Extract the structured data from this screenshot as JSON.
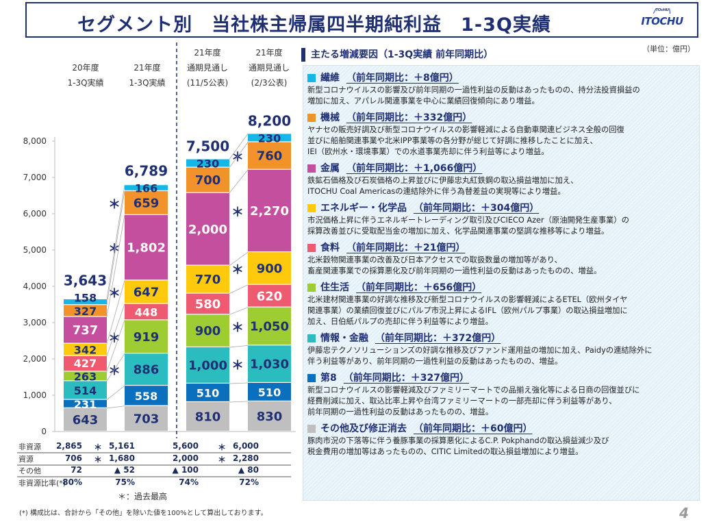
{
  "title": "セグメント別　当社株主帰属四半期純利益　1-3Q実績",
  "logo": "ITOCHU",
  "unit": "（単位：億円）",
  "colors": {
    "その他": "#bfbfbf",
    "第8": "#0a6fbd",
    "情報・金融": "#2bbcbf",
    "住生活": "#9dcc33",
    "食料": "#ee5a70",
    "エネルギー・化学品": "#ffc90e",
    "金属": "#c44f9e",
    "機械": "#f2922a",
    "繊維": "#16b6e6",
    "navy": "#1f2f73"
  },
  "chart_data": {
    "type": "bar",
    "stacked": true,
    "categories": [
      [
        "20年度",
        "1-3Q実績"
      ],
      [
        "21年度",
        "1-3Q実績"
      ],
      [
        "21年度",
        "通期見通し",
        "(11/5公表)"
      ],
      [
        "21年度",
        "通期見通し",
        "(2/3公表)"
      ]
    ],
    "ylim": [
      0,
      8000
    ],
    "yticks": [
      "0",
      "1,000",
      "2,000",
      "3,000",
      "4,000",
      "5,000",
      "6,000",
      "7,000",
      "8,000"
    ],
    "totals": [
      "3,643",
      "6,789",
      "7,500",
      "8,200"
    ],
    "series": [
      {
        "key": "その他",
        "values": [
          643,
          703,
          810,
          830
        ],
        "labels": [
          "643",
          "703",
          "810",
          "830"
        ],
        "stars": [
          false,
          false,
          false,
          false
        ]
      },
      {
        "key": "第8",
        "values": [
          231,
          558,
          510,
          510
        ],
        "labels": [
          "231",
          "558",
          "510",
          "510"
        ],
        "stars": [
          false,
          false,
          false,
          false
        ]
      },
      {
        "key": "情報・金融",
        "values": [
          514,
          886,
          1000,
          1030
        ],
        "labels": [
          "514",
          "886",
          "1,000",
          "1,030"
        ],
        "stars": [
          false,
          true,
          false,
          true
        ]
      },
      {
        "key": "住生活",
        "values": [
          263,
          919,
          900,
          1050
        ],
        "labels": [
          "263",
          "919",
          "900",
          "1,050"
        ],
        "stars": [
          false,
          true,
          false,
          true
        ]
      },
      {
        "key": "食料",
        "values": [
          427,
          448,
          580,
          620
        ],
        "labels": [
          "427",
          "448",
          "580",
          "620"
        ],
        "stars": [
          false,
          false,
          false,
          false
        ]
      },
      {
        "key": "エネルギー・化学品",
        "values": [
          342,
          647,
          770,
          900
        ],
        "labels": [
          "342",
          "647",
          "770",
          "900"
        ],
        "stars": [
          false,
          true,
          false,
          true
        ]
      },
      {
        "key": "金属",
        "values": [
          737,
          1802,
          2000,
          2270
        ],
        "labels": [
          "737",
          "1,802",
          "2,000",
          "2,270"
        ],
        "stars": [
          false,
          true,
          false,
          true
        ]
      },
      {
        "key": "機械",
        "values": [
          327,
          659,
          700,
          760
        ],
        "labels": [
          "327",
          "659",
          "700",
          "760"
        ],
        "stars": [
          false,
          true,
          false,
          true
        ]
      },
      {
        "key": "繊維",
        "values": [
          158,
          166,
          230,
          230
        ],
        "labels": [
          "158",
          "166",
          "230",
          "230"
        ],
        "stars": [
          false,
          false,
          false,
          false
        ]
      }
    ]
  },
  "table": [
    {
      "label": "非資源",
      "values": [
        "2,865",
        "5,161",
        "5,600",
        "6,000"
      ],
      "stars": [
        false,
        true,
        false,
        true
      ]
    },
    {
      "label": "資源",
      "values": [
        "706",
        "1,680",
        "2,000",
        "2,280"
      ],
      "stars": [
        false,
        true,
        false,
        true
      ]
    },
    {
      "label": "その他",
      "values": [
        "72",
        "▲ 52",
        "▲ 100",
        "▲ 80"
      ],
      "stars": [
        false,
        false,
        false,
        false
      ]
    },
    {
      "label": "非資源比率(*)",
      "values": [
        "80%",
        "75%",
        "74%",
        "72%"
      ],
      "stars": [
        false,
        false,
        false,
        false
      ]
    }
  ],
  "star": "＊",
  "star_legend": "＊：過去最高",
  "footnote": "(*) 構成比は、合計から「その他」を除いた値を100%として算出しております。",
  "panel": {
    "title": "主たる増減要因（1-3Q実績 前年同期比）",
    "sections": [
      {
        "color": "#16b6e6",
        "name": "繊維",
        "diff": "（前年同期比：＋8億円）",
        "body": "新型コロナウイルスの影響及び前年同期の一過性利益の反動はあったものの、持分法投資損益の\n増加に加え、アパレル関連事業を中心に業績回復傾向にあり増益。"
      },
      {
        "color": "#f2922a",
        "name": "機械",
        "diff": "（前年同期比：＋332億円）",
        "body": "ヤナセの販売好調及び新型コロナウイルスの影響軽減による自動車関連ビジネス全般の回復\n並びに船舶関連事業や北米IPP事業等の各分野が総じて好調に推移したことに加え、\nIEI（欧州水・環境事業）での水道事業売却に伴う利益等により増益。"
      },
      {
        "color": "#c44f9e",
        "name": "金属",
        "diff": "（前年同期比：＋1,066億円）",
        "body": "鉄鉱石価格及び石炭価格の上昇並びに伊藤忠丸紅鉄鋼の取込損益増加に加え、\nITOCHU Coal Americasの連結除外に伴う為替差益の実現等により増益。"
      },
      {
        "color": "#ffc90e",
        "name": "エネルギー・化学品",
        "diff": "（前年同期比：＋304億円）",
        "body": "市況価格上昇に伴うエネルギートレーディング取引及びCIECO Azer（原油開発生産事業）の\n採算改善並びに受取配当金の増加に加え、化学品関連事業の堅調な推移等により増益。"
      },
      {
        "color": "#ee5a70",
        "name": "食料",
        "diff": "（前年同期比：＋21億円）",
        "body": "北米穀物関連事業の改善及び日本アクセスでの取扱数量の増加等があり、\n畜産関連事業での採算悪化及び前年同期の一過性利益の反動はあったものの、増益。"
      },
      {
        "color": "#9dcc33",
        "name": "住生活",
        "diff": "（前年同期比：＋656億円）",
        "body": "北米建材関連事業の好調な推移及び新型コロナウイルスの影響軽減によるETEL（欧州タイヤ\n関連事業）の業績回復並びにパルプ市況上昇によるIFL（欧州パルプ事業）の取込損益増加に\n加え、日伯紙パルプの売却に伴う利益等により増益。"
      },
      {
        "color": "#2bbcbf",
        "name": "情報・金融",
        "diff": "（前年同期比：＋372億円）",
        "body": "伊藤忠テクノソリューションズの好調な推移及びファンド運用益の増加に加え、Paidyの連結除外に\n伴う利益等があり、前年同期の一過性利益の反動はあったものの、増益。"
      },
      {
        "color": "#0a6fbd",
        "name": "第8",
        "diff": "（前年同期比：＋327億円）",
        "body": "新型コロナウイルスの影響軽減及びファミリーマートでの品揃え強化等による日商の回復並びに\n経費削減に加え、取込比率上昇や台湾ファミリーマートの一部売却に伴う利益等があり、\n前年同期の一過性利益の反動はあったものの、増益。"
      },
      {
        "color": "#bfbfbf",
        "name": "その他及び修正消去",
        "diff": "（前年同期比：＋60億円）",
        "body": "豚肉市況の下落等に伴う養豚事業の採算悪化によるC.P. Pokphandの取込損益減少及び\n税金費用の増加等はあったものの、CITIC Limitedの取込損益増加により増益。"
      }
    ]
  },
  "page_number": "4"
}
